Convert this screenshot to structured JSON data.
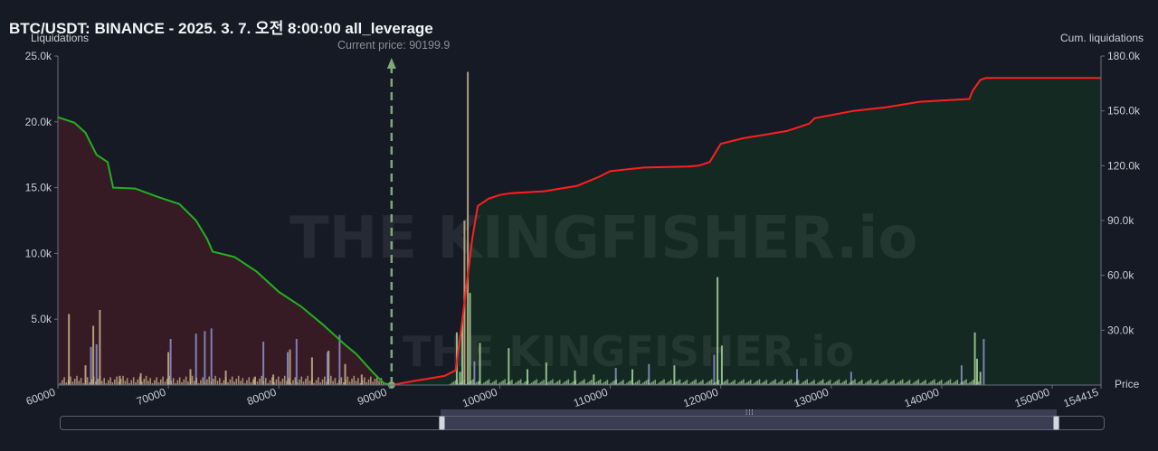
{
  "title": "BTC/USDT: BINANCE - 2025. 3. 7. 오전 8:00:00 all_leverage",
  "current_price_label": "Current price: 90199.9",
  "watermark": "THE KINGFISHER.io",
  "colors": {
    "background": "#161a25",
    "short_cum_line": "#22b022",
    "long_cum_line": "#ff1f1f",
    "left_fill": "#3a1c26",
    "right_fill": "#142a22",
    "bar_tan": "#c8b48a",
    "bar_blue": "#8c92c8",
    "bar_green": "#a6d49a",
    "price_marker": "#7fa874"
  },
  "chart_data": {
    "type": "bar+line",
    "xlabel": "Price",
    "ylabel_left": "Liquidations",
    "ylabel_right": "Cum. liquidations",
    "x_range": [
      60000,
      154415
    ],
    "x_ticks": [
      "60000",
      "70000",
      "80000",
      "90000",
      "100000",
      "110000",
      "120000",
      "130000",
      "140000",
      "150000",
      "154415"
    ],
    "y_left": {
      "range": [
        0,
        25000
      ],
      "ticks": [
        "5.0k",
        "10.0k",
        "15.0k",
        "20.0k",
        "25.0k"
      ],
      "values": [
        5000,
        10000,
        15000,
        20000,
        25000
      ]
    },
    "y_right": {
      "range": [
        0,
        180000
      ],
      "ticks": [
        "30.0k",
        "60.0k",
        "90.0k",
        "120.0k",
        "150.0k",
        "180.0k"
      ],
      "values": [
        30000,
        60000,
        90000,
        120000,
        150000,
        180000
      ]
    },
    "current_price": 90199.9,
    "series": [
      {
        "name": "Cumulative short-side liquidations",
        "axis": "right",
        "x": [
          60000,
          61500,
          62500,
          63500,
          64500,
          65000,
          67000,
          69000,
          71000,
          72500,
          73500,
          74000,
          76000,
          78000,
          80000,
          82000,
          84000,
          86000,
          87000,
          88500,
          89500,
          90199
        ],
        "y": [
          146500,
          143500,
          138000,
          126000,
          122000,
          108000,
          107500,
          103000,
          99000,
          90000,
          80000,
          73000,
          70000,
          62000,
          51000,
          43000,
          33000,
          22000,
          17000,
          7000,
          1000,
          0
        ]
      },
      {
        "name": "Cumulative long-side liquidations",
        "axis": "right",
        "x": [
          90199,
          92000,
          95000,
          96000,
          96500,
          97000,
          97500,
          98000,
          98500,
          99000,
          100000,
          101000,
          104000,
          107000,
          109000,
          110000,
          113000,
          117000,
          118000,
          119000,
          120000,
          122000,
          124000,
          126000,
          128000,
          128500,
          132000,
          135000,
          138000,
          141000,
          142500,
          142800,
          143500,
          144000,
          148000,
          154415
        ],
        "y": [
          0,
          2000,
          5000,
          8000,
          30000,
          55000,
          80000,
          98000,
          100000,
          102000,
          104000,
          105000,
          106000,
          109000,
          114000,
          117000,
          119000,
          119500,
          120000,
          122000,
          132000,
          135000,
          137000,
          139000,
          143000,
          146000,
          150000,
          152000,
          155000,
          156000,
          156500,
          161000,
          167000,
          168000,
          168000,
          168000
        ]
      },
      {
        "name": "Liquidations (tan)",
        "axis": "left",
        "x": [
          61000,
          62500,
          63200,
          63800,
          65600,
          67500,
          70000,
          72000,
          75200,
          77800,
          79500,
          81000,
          83000,
          84500,
          86000,
          87500,
          96800,
          97100
        ],
        "y": [
          5400,
          1500,
          4500,
          5700,
          700,
          900,
          2500,
          1200,
          1100,
          600,
          800,
          2700,
          2100,
          2600,
          1600,
          800,
          12500,
          23800
        ]
      },
      {
        "name": "Liquidations (blue)",
        "axis": "left",
        "x": [
          63000,
          63500,
          70200,
          72500,
          73300,
          73900,
          78600,
          80800,
          81600,
          84400,
          85500,
          97700,
          110500,
          113500,
          119400,
          126900,
          131800,
          141800,
          143800
        ],
        "y": [
          2900,
          3100,
          3500,
          3900,
          4100,
          4300,
          3300,
          2500,
          3500,
          2500,
          3800,
          1800,
          1300,
          1600,
          2300,
          1200,
          1000,
          1500,
          3500
        ]
      },
      {
        "name": "Liquidations (green)",
        "axis": "left",
        "x": [
          96100,
          96400,
          96600,
          97300,
          98200,
          100800,
          102500,
          104200,
          106800,
          108500,
          112000,
          115800,
          119700,
          120100,
          143000,
          143200,
          143500
        ],
        "y": [
          4000,
          1000,
          5000,
          7000,
          3200,
          2800,
          1200,
          1700,
          1100,
          800,
          1200,
          1500,
          8200,
          3000,
          4000,
          2000,
          1000
        ]
      }
    ]
  }
}
